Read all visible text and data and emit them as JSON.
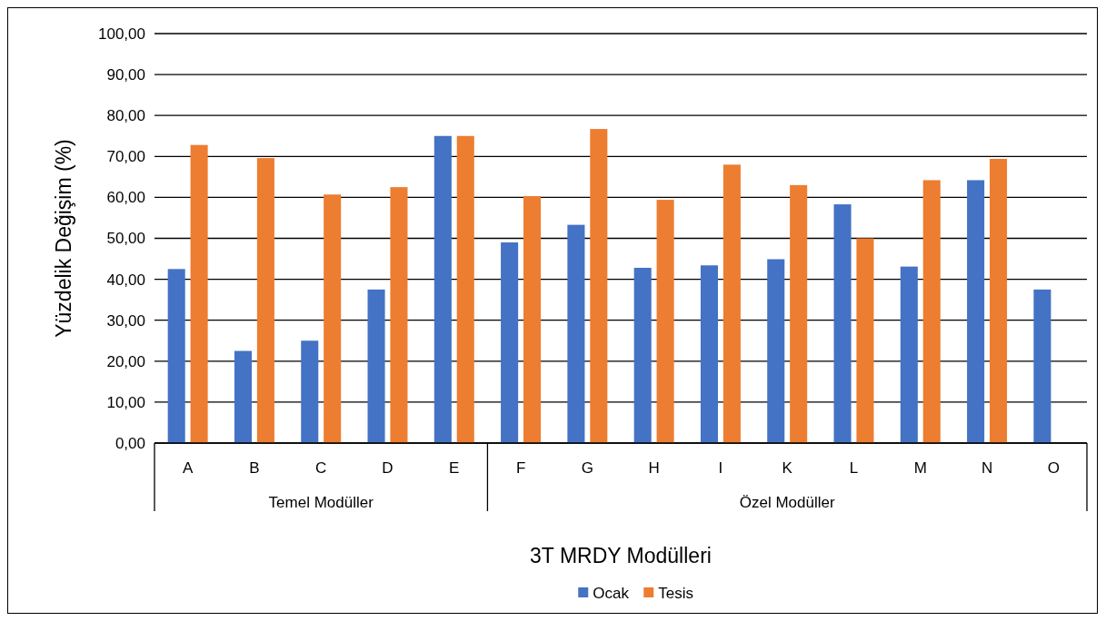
{
  "chart_data": {
    "type": "bar",
    "xlabel": "3T MRDY Modülleri",
    "ylabel": "Yüzdelik Değişim (%)",
    "categories": [
      "A",
      "B",
      "C",
      "D",
      "E",
      "F",
      "G",
      "H",
      "I",
      "K",
      "L",
      "M",
      "N",
      "O"
    ],
    "series": [
      {
        "name": "Ocak",
        "color": "#4472c4",
        "values": [
          42.5,
          22.5,
          25,
          37.5,
          75,
          49,
          53.3,
          42.8,
          43.4,
          44.9,
          58.3,
          43.1,
          64.2,
          37.5
        ]
      },
      {
        "name": "Tesis",
        "color": "#ed7d31",
        "values": [
          72.8,
          69.6,
          60.7,
          62.5,
          75,
          60.3,
          76.7,
          59.4,
          68,
          63,
          50,
          64.2,
          69.4,
          null
        ]
      }
    ],
    "ylim": [
      0,
      100
    ],
    "yticks": [
      {
        "value": 0,
        "label": "0,00"
      },
      {
        "value": 10,
        "label": "10,00"
      },
      {
        "value": 20,
        "label": "20,00"
      },
      {
        "value": 30,
        "label": "30,00"
      },
      {
        "value": 40,
        "label": "40,00"
      },
      {
        "value": 50,
        "label": "50,00"
      },
      {
        "value": 60,
        "label": "60,00"
      },
      {
        "value": 70,
        "label": "70,00"
      },
      {
        "value": 80,
        "label": "80,00"
      },
      {
        "value": 90,
        "label": "90,00"
      },
      {
        "value": 100,
        "label": "100,00"
      }
    ],
    "annotations": [
      "Temel Modüller",
      "Özel Modüller"
    ],
    "grid": "y",
    "legend": "bottom"
  }
}
